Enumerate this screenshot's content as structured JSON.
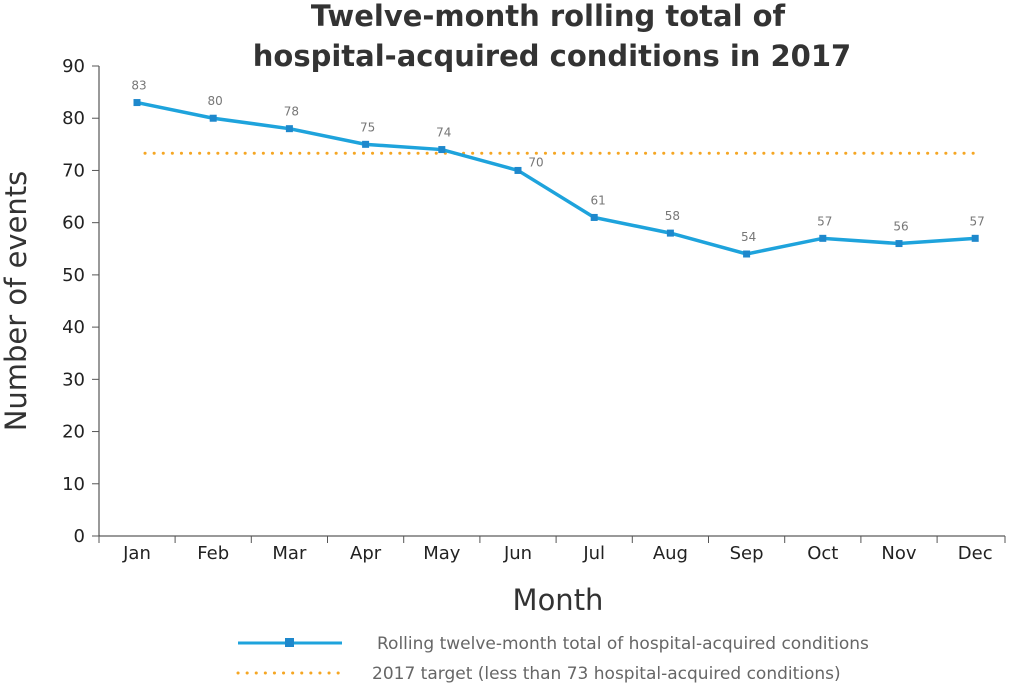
{
  "chart_data": {
    "type": "line",
    "title": [
      "Twelve-month rolling total of",
      "hospital-acquired conditions in 2017"
    ],
    "xlabel": "Month",
    "ylabel": "Number of events",
    "categories": [
      "Jan",
      "Feb",
      "Mar",
      "Apr",
      "May",
      "Jun",
      "Jul",
      "Aug",
      "Sep",
      "Oct",
      "Nov",
      "Dec"
    ],
    "series": [
      {
        "name": "Rolling twelve-month total of hospital-acquired conditions",
        "values": [
          83,
          80,
          78,
          75,
          74,
          70,
          61,
          58,
          54,
          57,
          56,
          57
        ],
        "color": "#1ea3dc",
        "marker_color": "#1e88cc"
      }
    ],
    "target": {
      "name": "2017 target (less than 73 hospital-acquired conditions)",
      "value": 73,
      "color": "#f5a623"
    },
    "ylim": [
      0,
      90
    ],
    "yticks": [
      0,
      10,
      20,
      30,
      40,
      50,
      60,
      70,
      80,
      90
    ],
    "grid": false,
    "legend": "bottom"
  }
}
